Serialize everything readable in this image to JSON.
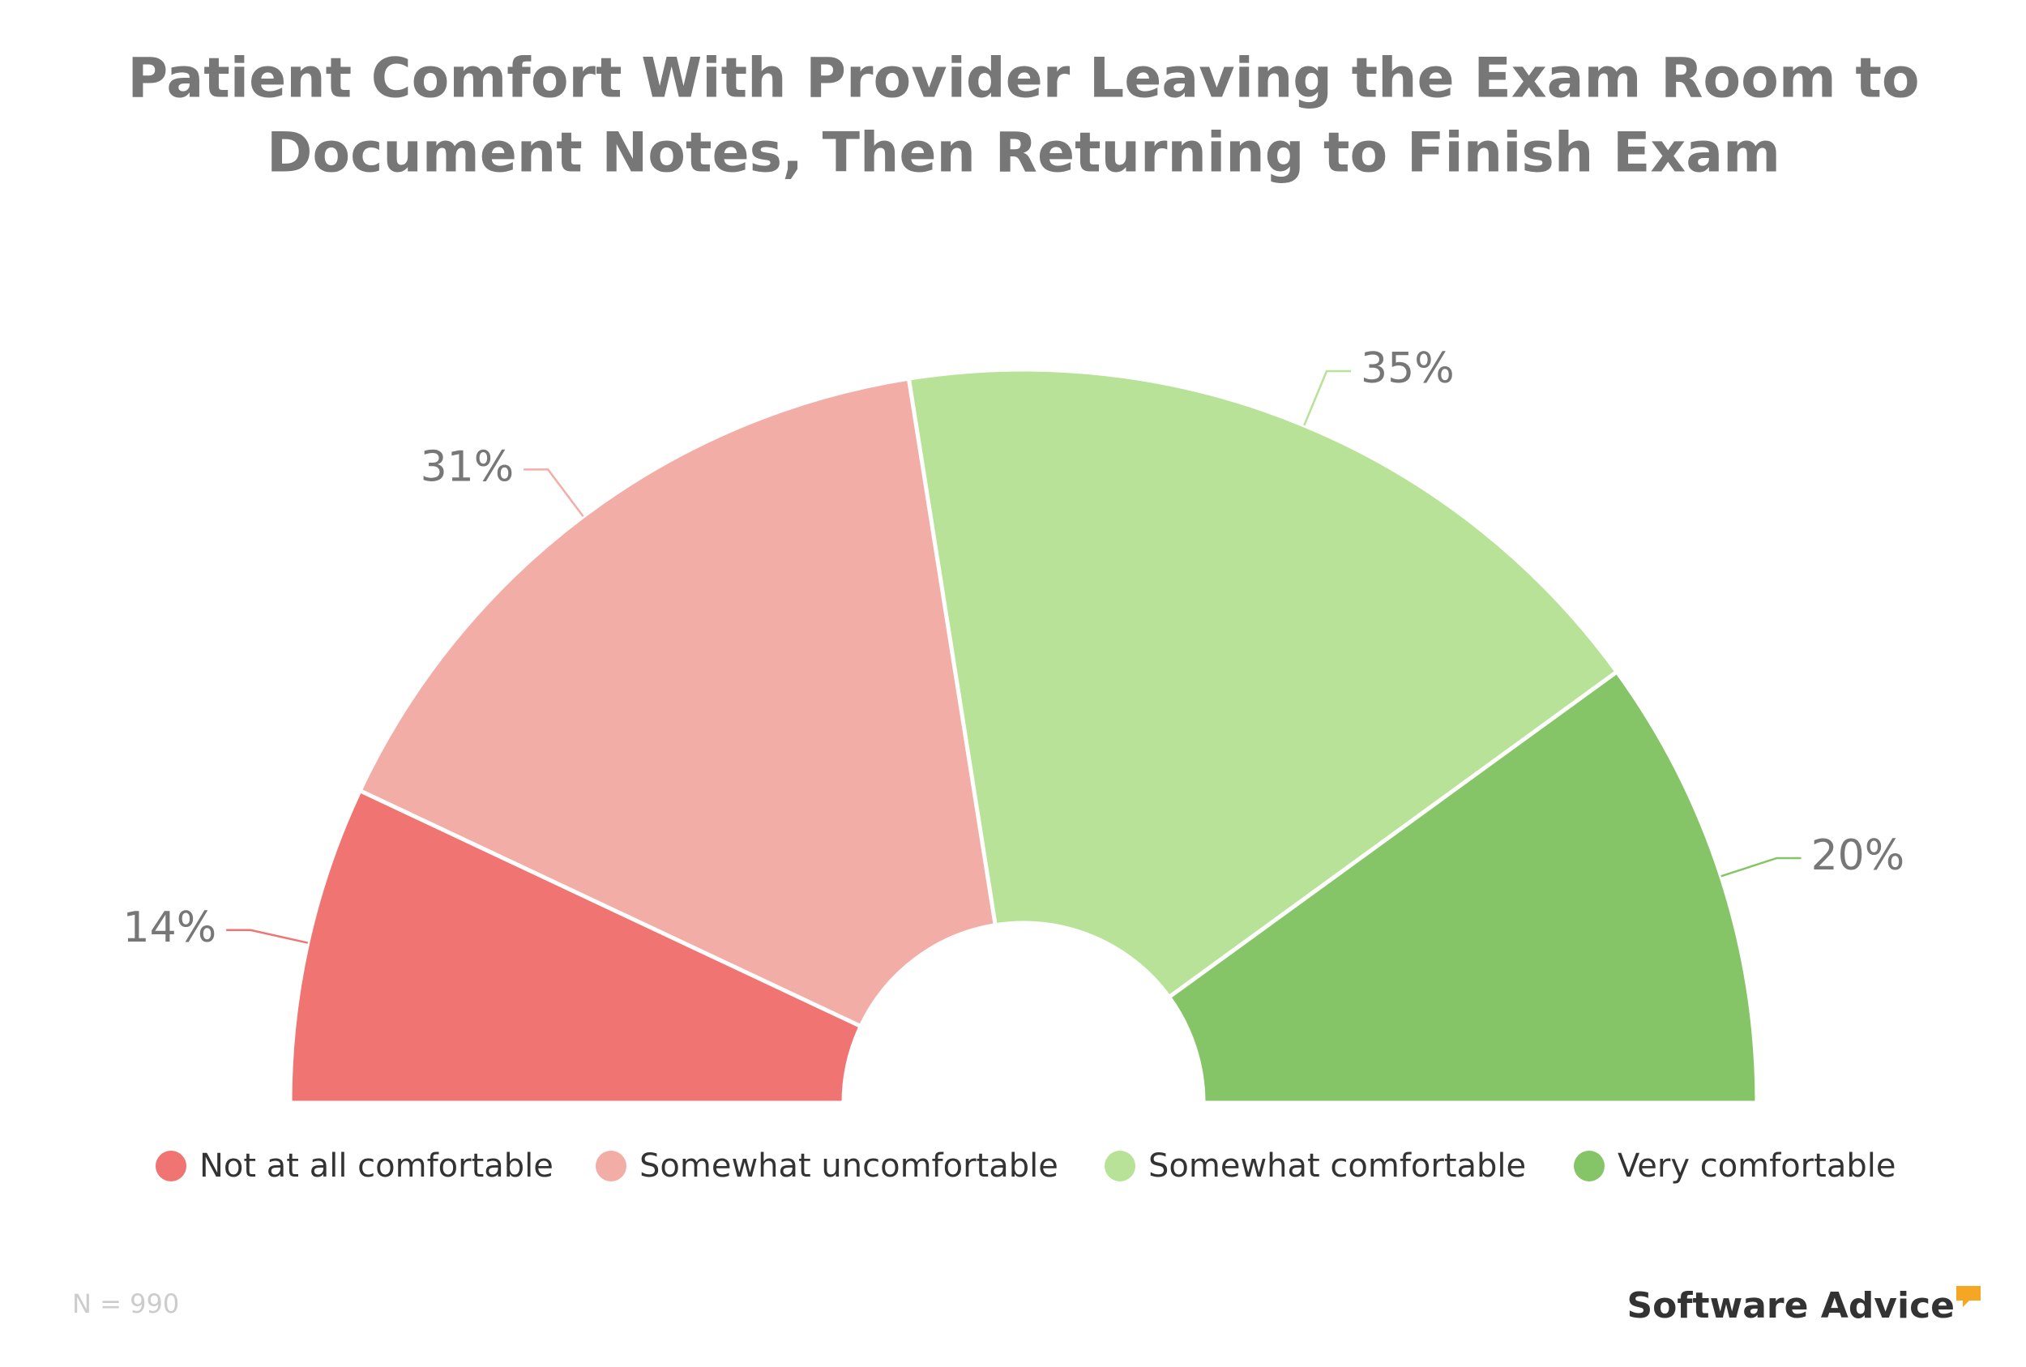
{
  "chart_data": {
    "type": "semi-donut",
    "title": [
      "Patient Comfort With Provider Leaving the Exam Room to",
      "Document Notes, Then Returning to Finish Exam"
    ],
    "categories": [
      "Not at all comfortable",
      "Somewhat uncomfortable",
      "Somewhat comfortable",
      "Very comfortable"
    ],
    "values": [
      14,
      31,
      35,
      20
    ],
    "value_labels": [
      "14%",
      "31%",
      "35%",
      "20%"
    ],
    "colors": [
      "#f07472",
      "#f3ada7",
      "#b7e297",
      "#86c567"
    ],
    "legend": "bottom",
    "note": "N = 990",
    "brand": "Software Advice"
  }
}
